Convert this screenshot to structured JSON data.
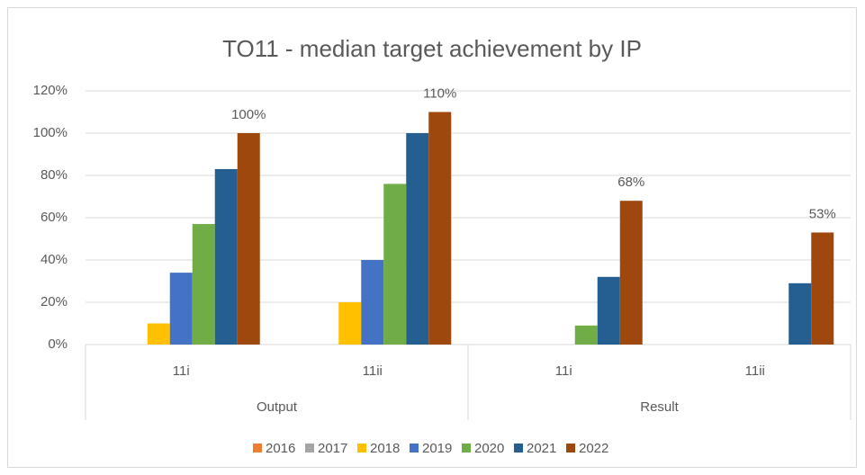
{
  "chart_data": {
    "type": "bar",
    "title": "TO11 - median target achievement by IP",
    "categories": [
      "11i",
      "11ii",
      "11i",
      "11ii"
    ],
    "category_groups": [
      "Output",
      "Result"
    ],
    "series": [
      {
        "name": "2016",
        "color": "#ed7d31",
        "values": [
          null,
          null,
          null,
          null
        ]
      },
      {
        "name": "2017",
        "color": "#a5a5a5",
        "values": [
          null,
          null,
          null,
          null
        ]
      },
      {
        "name": "2018",
        "color": "#ffc000",
        "values": [
          10,
          20,
          null,
          null
        ]
      },
      {
        "name": "2019",
        "color": "#4472c4",
        "values": [
          34,
          40,
          null,
          null
        ]
      },
      {
        "name": "2020",
        "color": "#70ad47",
        "values": [
          57,
          76,
          9,
          null
        ]
      },
      {
        "name": "2021",
        "color": "#255e91",
        "values": [
          83,
          100,
          32,
          29
        ]
      },
      {
        "name": "2022",
        "color": "#9e480e",
        "values": [
          100,
          110,
          68,
          53
        ],
        "value_labels": [
          "100%",
          "110%",
          "68%",
          "53%"
        ]
      }
    ],
    "ylim": [
      0,
      120
    ],
    "yticks": [
      {
        "value": 0,
        "label": "0%"
      },
      {
        "value": 20,
        "label": "20%"
      },
      {
        "value": 40,
        "label": "40%"
      },
      {
        "value": 60,
        "label": "60%"
      },
      {
        "value": 80,
        "label": "80%"
      },
      {
        "value": 100,
        "label": "100%"
      },
      {
        "value": 120,
        "label": "120%"
      }
    ],
    "grid": true,
    "legend": "bottom"
  }
}
